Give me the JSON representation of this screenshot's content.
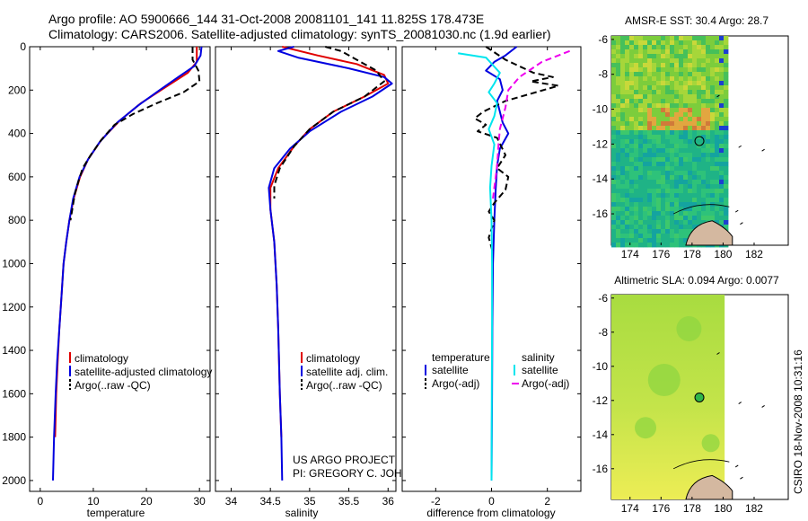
{
  "header": {
    "line1": "Argo profile: AO 5900666_144 31-Oct-2008 20081101_141 11.825S 178.473E",
    "line2": "Climatology: CARS2006. Satellite-adjusted climatology: synTS_20081030.nc (1.9d earlier)"
  },
  "colors": {
    "climatology": "#e00000",
    "satellite": "#0000e0",
    "argo": "#000000",
    "sal_satellite": "#00e5ee",
    "sal_argo": "#ee00ee"
  },
  "credits": {
    "project": "US ARGO PROJECT",
    "pi": "PI: GREGORY C. JOHNSON",
    "stamp": "CSIRO 18-Nov-2008 10:31:16"
  },
  "chart_data": [
    {
      "type": "line",
      "id": "temperature",
      "xlabel": "temperature",
      "ylabel": "",
      "xlim": [
        -2,
        32
      ],
      "ylim": [
        2050,
        0
      ],
      "x_ticks": [
        0,
        10,
        20,
        30
      ],
      "y_ticks": [
        0,
        200,
        400,
        600,
        800,
        1000,
        1200,
        1400,
        1600,
        1800,
        2000
      ],
      "legend": [
        "climatology",
        "satellite-adjusted climatology",
        "Argo(..raw -QC)"
      ],
      "series": [
        {
          "name": "climatology",
          "style": "solid",
          "color": "#e00000",
          "points": [
            [
              29.5,
              0
            ],
            [
              29.5,
              70
            ],
            [
              27.8,
              120
            ],
            [
              24,
              180
            ],
            [
              19,
              260
            ],
            [
              15,
              340
            ],
            [
              11.5,
              430
            ],
            [
              9,
              520
            ],
            [
              7.5,
              600
            ],
            [
              6.3,
              700
            ],
            [
              5.5,
              800
            ],
            [
              4.9,
              900
            ],
            [
              4.4,
              1000
            ],
            [
              4,
              1150
            ],
            [
              3.6,
              1300
            ],
            [
              3.3,
              1450
            ],
            [
              3.0,
              1600
            ],
            [
              2.8,
              1800
            ]
          ]
        },
        {
          "name": "satellite-adjusted climatology",
          "style": "solid",
          "color": "#0000e0",
          "points": [
            [
              30.4,
              0
            ],
            [
              30.2,
              40
            ],
            [
              29,
              90
            ],
            [
              26,
              140
            ],
            [
              22.5,
              200
            ],
            [
              18.5,
              270
            ],
            [
              14.5,
              350
            ],
            [
              11.2,
              440
            ],
            [
              9,
              520
            ],
            [
              7.4,
              600
            ],
            [
              6.2,
              700
            ],
            [
              5.5,
              800
            ],
            [
              4.9,
              900
            ],
            [
              4.4,
              1000
            ],
            [
              4,
              1150
            ],
            [
              3.6,
              1300
            ],
            [
              3.2,
              1450
            ],
            [
              2.9,
              1600
            ],
            [
              2.6,
              1800
            ],
            [
              2.4,
              2000
            ]
          ]
        },
        {
          "name": "Argo(..raw -QC)",
          "style": "dashed",
          "color": "#000000",
          "points": [
            [
              28.7,
              0
            ],
            [
              28.7,
              60
            ],
            [
              29.8,
              110
            ],
            [
              30,
              160
            ],
            [
              27,
              210
            ],
            [
              22,
              260
            ],
            [
              17.5,
              310
            ],
            [
              14,
              360
            ],
            [
              11.5,
              430
            ],
            [
              9.5,
              500
            ],
            [
              8,
              560
            ],
            [
              7.2,
              620
            ],
            [
              6.5,
              680
            ],
            [
              6.1,
              740
            ],
            [
              5.7,
              800
            ]
          ]
        }
      ]
    },
    {
      "type": "line",
      "id": "salinity",
      "xlabel": "salinity",
      "xlim": [
        33.8,
        36.1
      ],
      "ylim": [
        2050,
        0
      ],
      "x_ticks": [
        34,
        34.5,
        35,
        35.5,
        36
      ],
      "y_ticks": [
        0,
        200,
        400,
        600,
        800,
        1000,
        1200,
        1400,
        1600,
        1800,
        2000
      ],
      "legend": [
        "climatology",
        "satellite adj. clim.",
        "Argo(..raw -QC)"
      ],
      "series": [
        {
          "name": "climatology",
          "style": "solid",
          "color": "#e00000",
          "points": [
            [
              34.65,
              0
            ],
            [
              35.1,
              40
            ],
            [
              35.6,
              80
            ],
            [
              35.95,
              130
            ],
            [
              36.0,
              170
            ],
            [
              35.7,
              230
            ],
            [
              35.3,
              300
            ],
            [
              35.0,
              380
            ],
            [
              34.8,
              460
            ],
            [
              34.6,
              560
            ],
            [
              34.5,
              650
            ],
            [
              34.5,
              750
            ],
            [
              34.55,
              900
            ],
            [
              34.58,
              1100
            ],
            [
              34.6,
              1300
            ],
            [
              34.62,
              1600
            ],
            [
              34.64,
              1800
            ]
          ]
        },
        {
          "name": "satellite adj. clim.",
          "style": "solid",
          "color": "#0000e0",
          "points": [
            [
              34.8,
              0
            ],
            [
              34.6,
              20
            ],
            [
              34.85,
              50
            ],
            [
              35.5,
              100
            ],
            [
              35.95,
              140
            ],
            [
              36.05,
              170
            ],
            [
              35.8,
              230
            ],
            [
              35.4,
              300
            ],
            [
              35.0,
              390
            ],
            [
              34.75,
              470
            ],
            [
              34.55,
              560
            ],
            [
              34.48,
              650
            ],
            [
              34.5,
              750
            ],
            [
              34.55,
              900
            ],
            [
              34.58,
              1100
            ],
            [
              34.6,
              1300
            ],
            [
              34.62,
              1600
            ],
            [
              34.64,
              1800
            ],
            [
              34.65,
              2000
            ]
          ]
        },
        {
          "name": "Argo(..raw -QC)",
          "style": "dashed",
          "color": "#000000",
          "points": [
            [
              35.2,
              0
            ],
            [
              35.4,
              20
            ],
            [
              35.6,
              60
            ],
            [
              35.85,
              110
            ],
            [
              35.95,
              160
            ],
            [
              35.7,
              230
            ],
            [
              35.3,
              300
            ],
            [
              35.0,
              380
            ],
            [
              34.8,
              460
            ],
            [
              34.62,
              560
            ],
            [
              34.55,
              640
            ],
            [
              34.55,
              700
            ]
          ]
        }
      ]
    },
    {
      "type": "line",
      "id": "difference",
      "xlabel": "difference from climatology",
      "xlim": [
        -3.2,
        3.2
      ],
      "ylim": [
        2050,
        0
      ],
      "x_ticks": [
        -2,
        0,
        2
      ],
      "y_ticks": [
        0,
        200,
        400,
        600,
        800,
        1000,
        1200,
        1400,
        1600,
        1800,
        2000
      ],
      "legend_groups": {
        "temperature": [
          "satellite",
          "Argo(-adj)"
        ],
        "salinity": [
          "satellite",
          "Argo(-adj)"
        ]
      },
      "series": [
        {
          "name": "temperature satellite",
          "style": "solid",
          "color": "#0000e0",
          "points": [
            [
              0.9,
              0
            ],
            [
              0.5,
              40
            ],
            [
              0.1,
              70
            ],
            [
              -0.2,
              110
            ],
            [
              0.3,
              150
            ],
            [
              0.4,
              200
            ],
            [
              0.2,
              250
            ],
            [
              0.3,
              300
            ],
            [
              0.4,
              350
            ],
            [
              0.6,
              400
            ],
            [
              0.3,
              470
            ],
            [
              0.2,
              550
            ],
            [
              0.15,
              650
            ],
            [
              0.1,
              800
            ],
            [
              0.05,
              1000
            ],
            [
              0.03,
              1300
            ],
            [
              0.02,
              1600
            ],
            [
              0,
              2000
            ]
          ]
        },
        {
          "name": "temperature Argo(-adj)",
          "style": "dashed",
          "color": "#000000",
          "points": [
            [
              -0.2,
              0
            ],
            [
              0.5,
              60
            ],
            [
              1.5,
              120
            ],
            [
              2.2,
              140
            ],
            [
              1.4,
              160
            ],
            [
              2.4,
              180
            ],
            [
              0.5,
              250
            ],
            [
              -0.3,
              300
            ],
            [
              -0.6,
              330
            ],
            [
              -0.2,
              360
            ],
            [
              -0.5,
              390
            ],
            [
              0.2,
              420
            ],
            [
              0.5,
              500
            ],
            [
              0.2,
              560
            ],
            [
              0.6,
              600
            ],
            [
              0.5,
              660
            ],
            [
              0.1,
              720
            ],
            [
              -0.1,
              760
            ],
            [
              0.1,
              800
            ],
            [
              -0.1,
              880
            ],
            [
              0.05,
              950
            ]
          ]
        },
        {
          "name": "salinity satellite",
          "style": "solid",
          "color": "#00e5ee",
          "points": [
            [
              -1.2,
              30
            ],
            [
              -0.2,
              50
            ],
            [
              0.3,
              120
            ],
            [
              0.1,
              170
            ],
            [
              -0.1,
              210
            ],
            [
              0.2,
              260
            ],
            [
              0.1,
              320
            ],
            [
              -0.1,
              380
            ],
            [
              0.1,
              450
            ],
            [
              0,
              550
            ],
            [
              -0.05,
              650
            ],
            [
              0,
              800
            ],
            [
              0.02,
              1000
            ],
            [
              0.02,
              1300
            ],
            [
              0.01,
              1600
            ],
            [
              0,
              2000
            ]
          ]
        },
        {
          "name": "salinity Argo(-adj)",
          "style": "dashed",
          "color": "#ee00ee",
          "points": [
            [
              2.8,
              20
            ],
            [
              1.8,
              70
            ],
            [
              1.0,
              140
            ],
            [
              0.6,
              200
            ],
            [
              0.5,
              280
            ],
            [
              0.3,
              380
            ],
            [
              0.25,
              450
            ],
            [
              0.2,
              550
            ],
            [
              0.1,
              650
            ],
            [
              0.05,
              700
            ]
          ]
        }
      ]
    }
  ],
  "maps": [
    {
      "id": "sst",
      "title": "AMSR-E SST: 30.4  Argo: 28.7",
      "xlim": [
        172.8,
        184.2
      ],
      "ylim": [
        -17.8,
        -5.8
      ],
      "x_ticks": [
        174,
        176,
        178,
        180,
        182
      ],
      "y_ticks": [
        -6,
        -8,
        -10,
        -12,
        -14,
        -16
      ],
      "marker": [
        178.473,
        -11.825
      ]
    },
    {
      "id": "sla",
      "title": "Altimetric SLA: 0.094  Argo: 0.0077",
      "xlim": [
        172.8,
        184.2
      ],
      "ylim": [
        -17.8,
        -5.8
      ],
      "x_ticks": [
        174,
        176,
        178,
        180,
        182
      ],
      "y_ticks": [
        -6,
        -8,
        -10,
        -12,
        -14,
        -16
      ],
      "marker": [
        178.473,
        -11.825
      ]
    }
  ]
}
